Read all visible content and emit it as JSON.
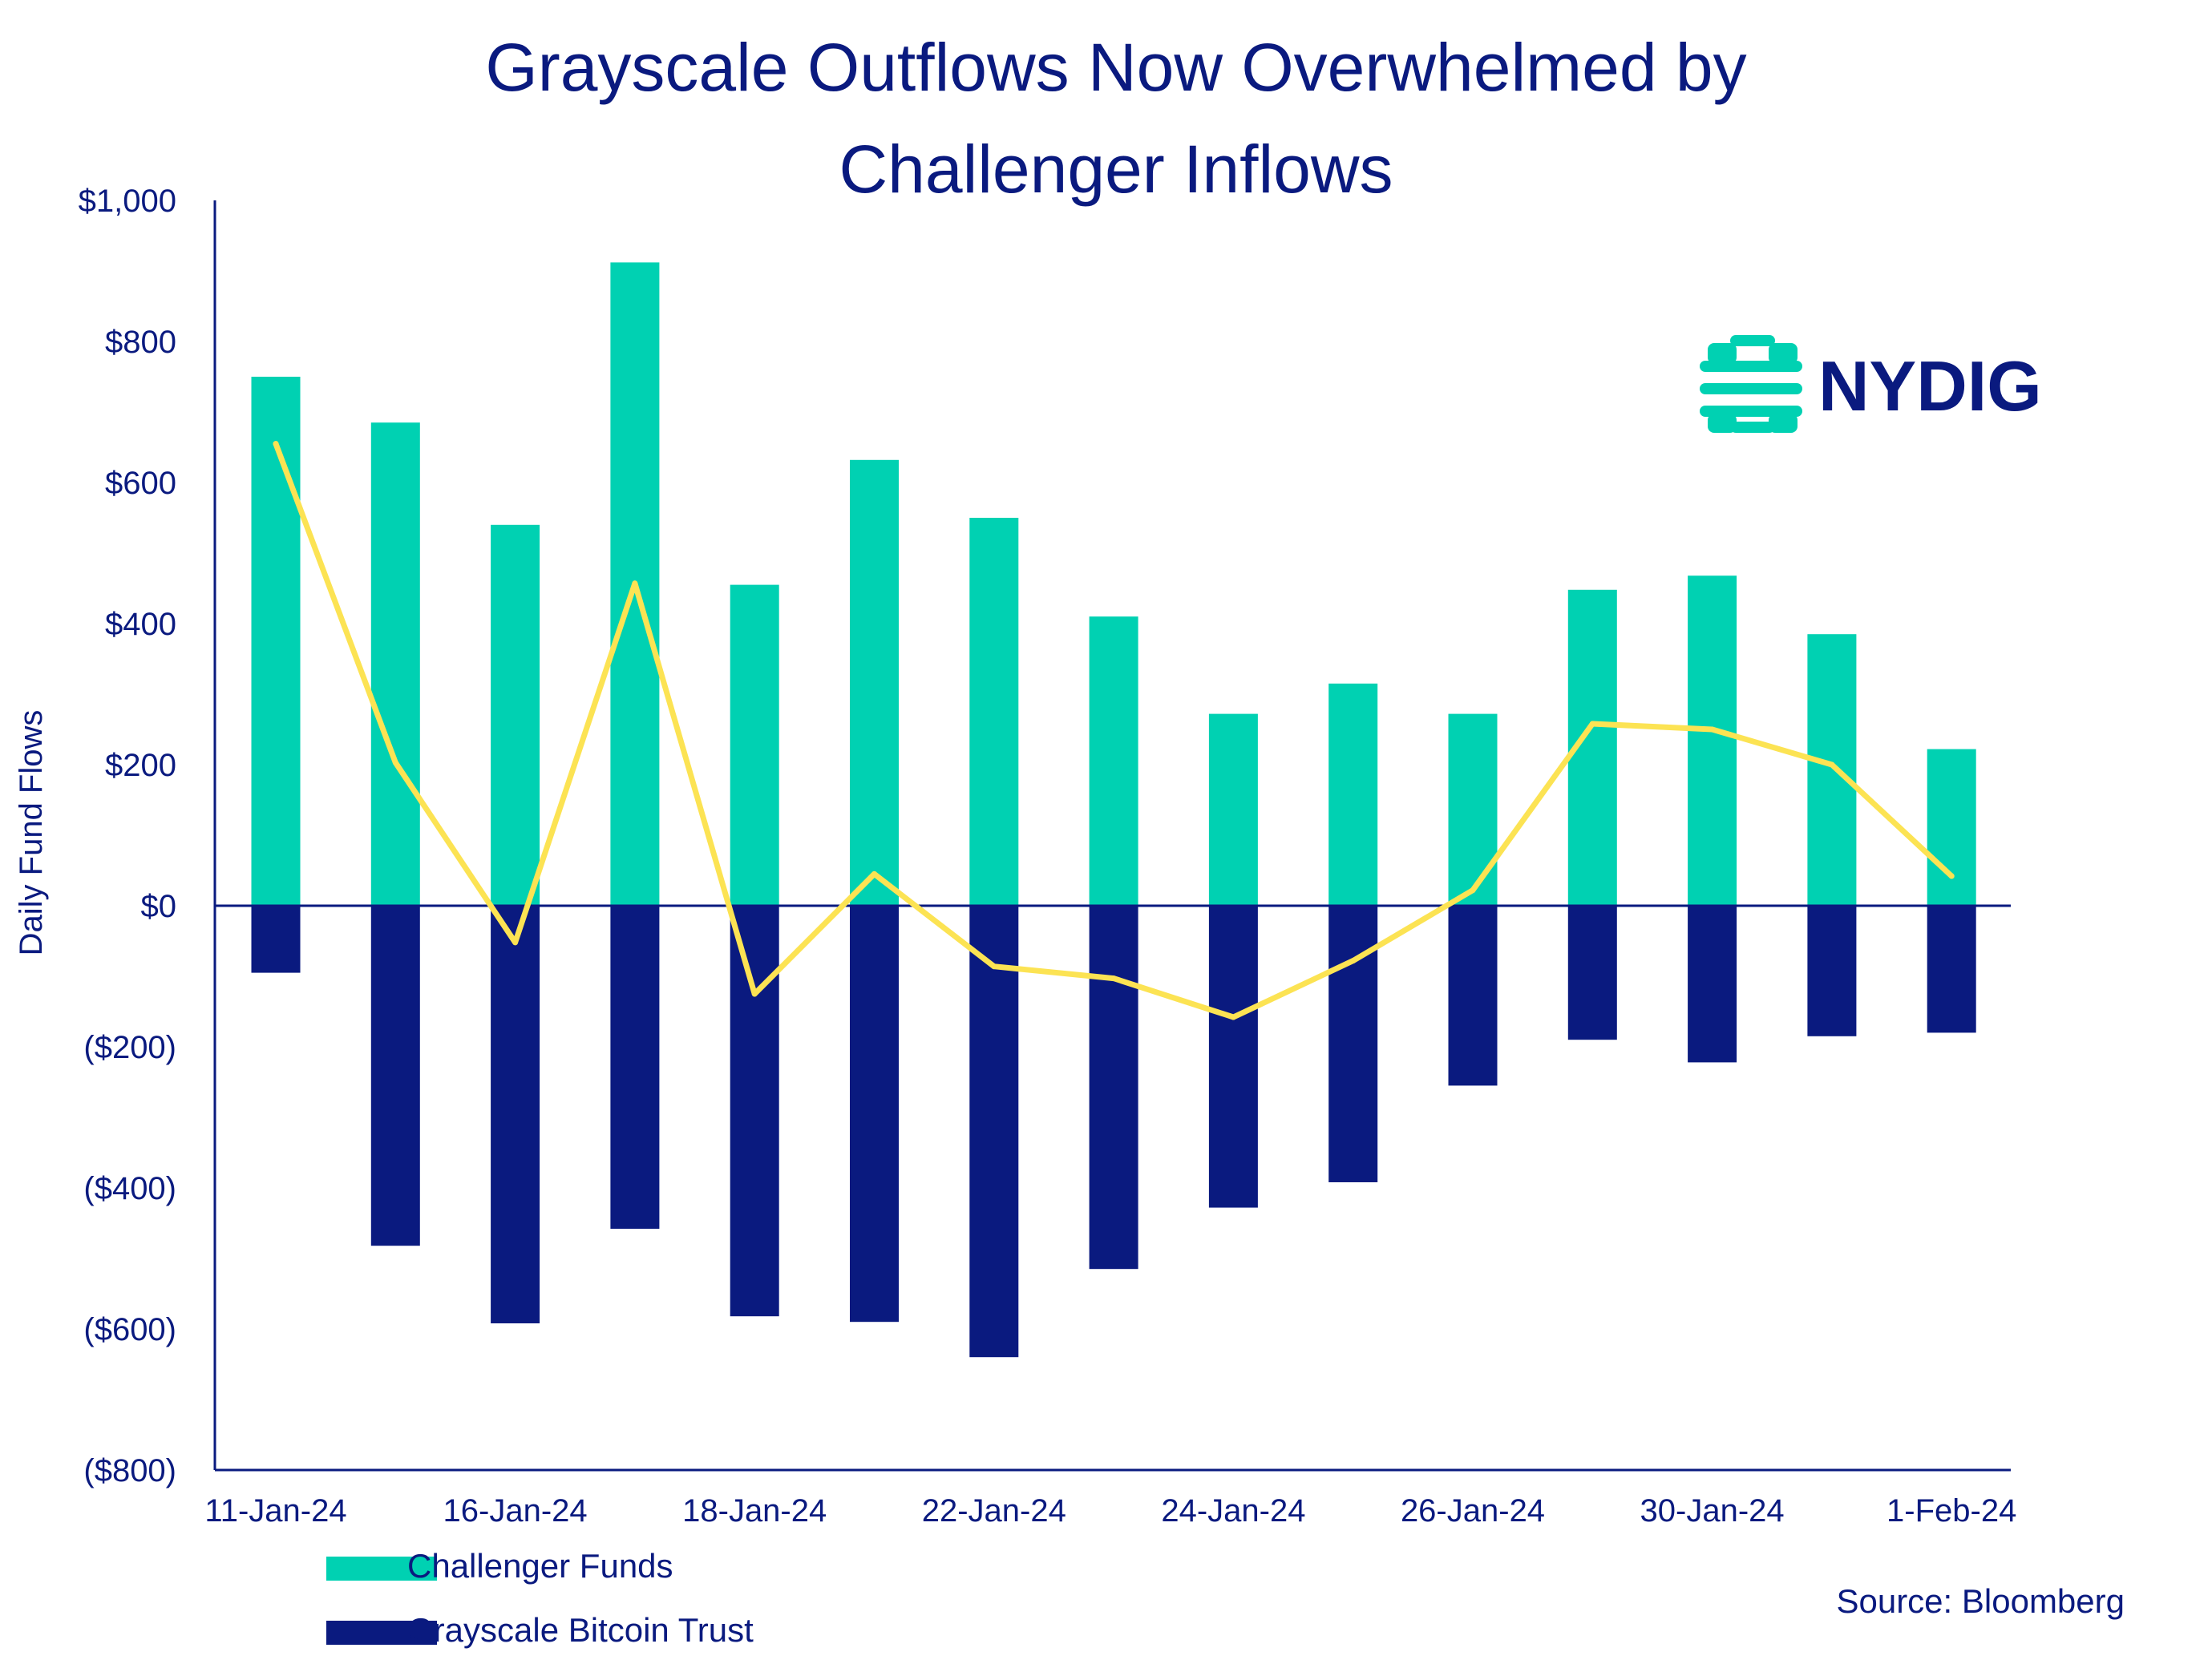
{
  "chart_data": {
    "type": "bar",
    "title": "Grayscale Outflows Now Overwhelmed by Challenger Inflows",
    "title_lines": [
      "Grayscale Outflows Now Overwhelmed by",
      "Challenger Inflows"
    ],
    "ylabel": "Daily Fund Flows",
    "xlabel": "",
    "ylim": [
      -800,
      1000
    ],
    "y_ticks": [
      1000,
      800,
      600,
      400,
      200,
      0,
      -200,
      -400,
      -600,
      -800
    ],
    "y_tick_labels": [
      "$1,000",
      "$800",
      "$600",
      "$400",
      "$200",
      "$0",
      "($200)",
      "($400)",
      "($600)",
      "($800)"
    ],
    "x_tick_labels": [
      {
        "index": 0,
        "label": "11-Jan-24"
      },
      {
        "index": 2,
        "label": "16-Jan-24"
      },
      {
        "index": 4,
        "label": "18-Jan-24"
      },
      {
        "index": 6,
        "label": "22-Jan-24"
      },
      {
        "index": 8,
        "label": "24-Jan-24"
      },
      {
        "index": 10,
        "label": "26-Jan-24"
      },
      {
        "index": 12,
        "label": "30-Jan-24"
      },
      {
        "index": 14,
        "label": "1-Feb-24"
      }
    ],
    "n_categories": 15,
    "series": [
      {
        "name": "Challenger Funds",
        "kind": "bar",
        "color": "#00D1B2",
        "values": [
          750,
          685,
          540,
          912,
          455,
          632,
          550,
          410,
          272,
          315,
          272,
          448,
          468,
          385,
          222
        ]
      },
      {
        "name": "Grayscale Bitcoin Trust",
        "kind": "bar",
        "color": "#0A1A7F",
        "values": [
          -95,
          -482,
          -592,
          -458,
          -582,
          -590,
          -640,
          -515,
          -428,
          -392,
          -255,
          -190,
          -222,
          -185,
          -180
        ]
      },
      {
        "kind": "line",
        "color": "#FCE353",
        "values": [
          655,
          203,
          -52,
          457,
          -125,
          45,
          -86,
          -103,
          -158,
          -78,
          22,
          258,
          250,
          200,
          42
        ]
      }
    ],
    "legend": {
      "placement": "bottom-left",
      "entries": [
        "Challenger Funds",
        "Grayscale Bitcoin Trust"
      ]
    },
    "source": "Source: Bloomberg",
    "grid": false
  },
  "logo": {
    "text": "NYDIG",
    "icon": "nydig-logo-icon",
    "color": "#0A1A7F",
    "accent": "#00D1B2"
  },
  "colors": {
    "text": "#0A1A7F",
    "axis": "#0A1A7F"
  }
}
